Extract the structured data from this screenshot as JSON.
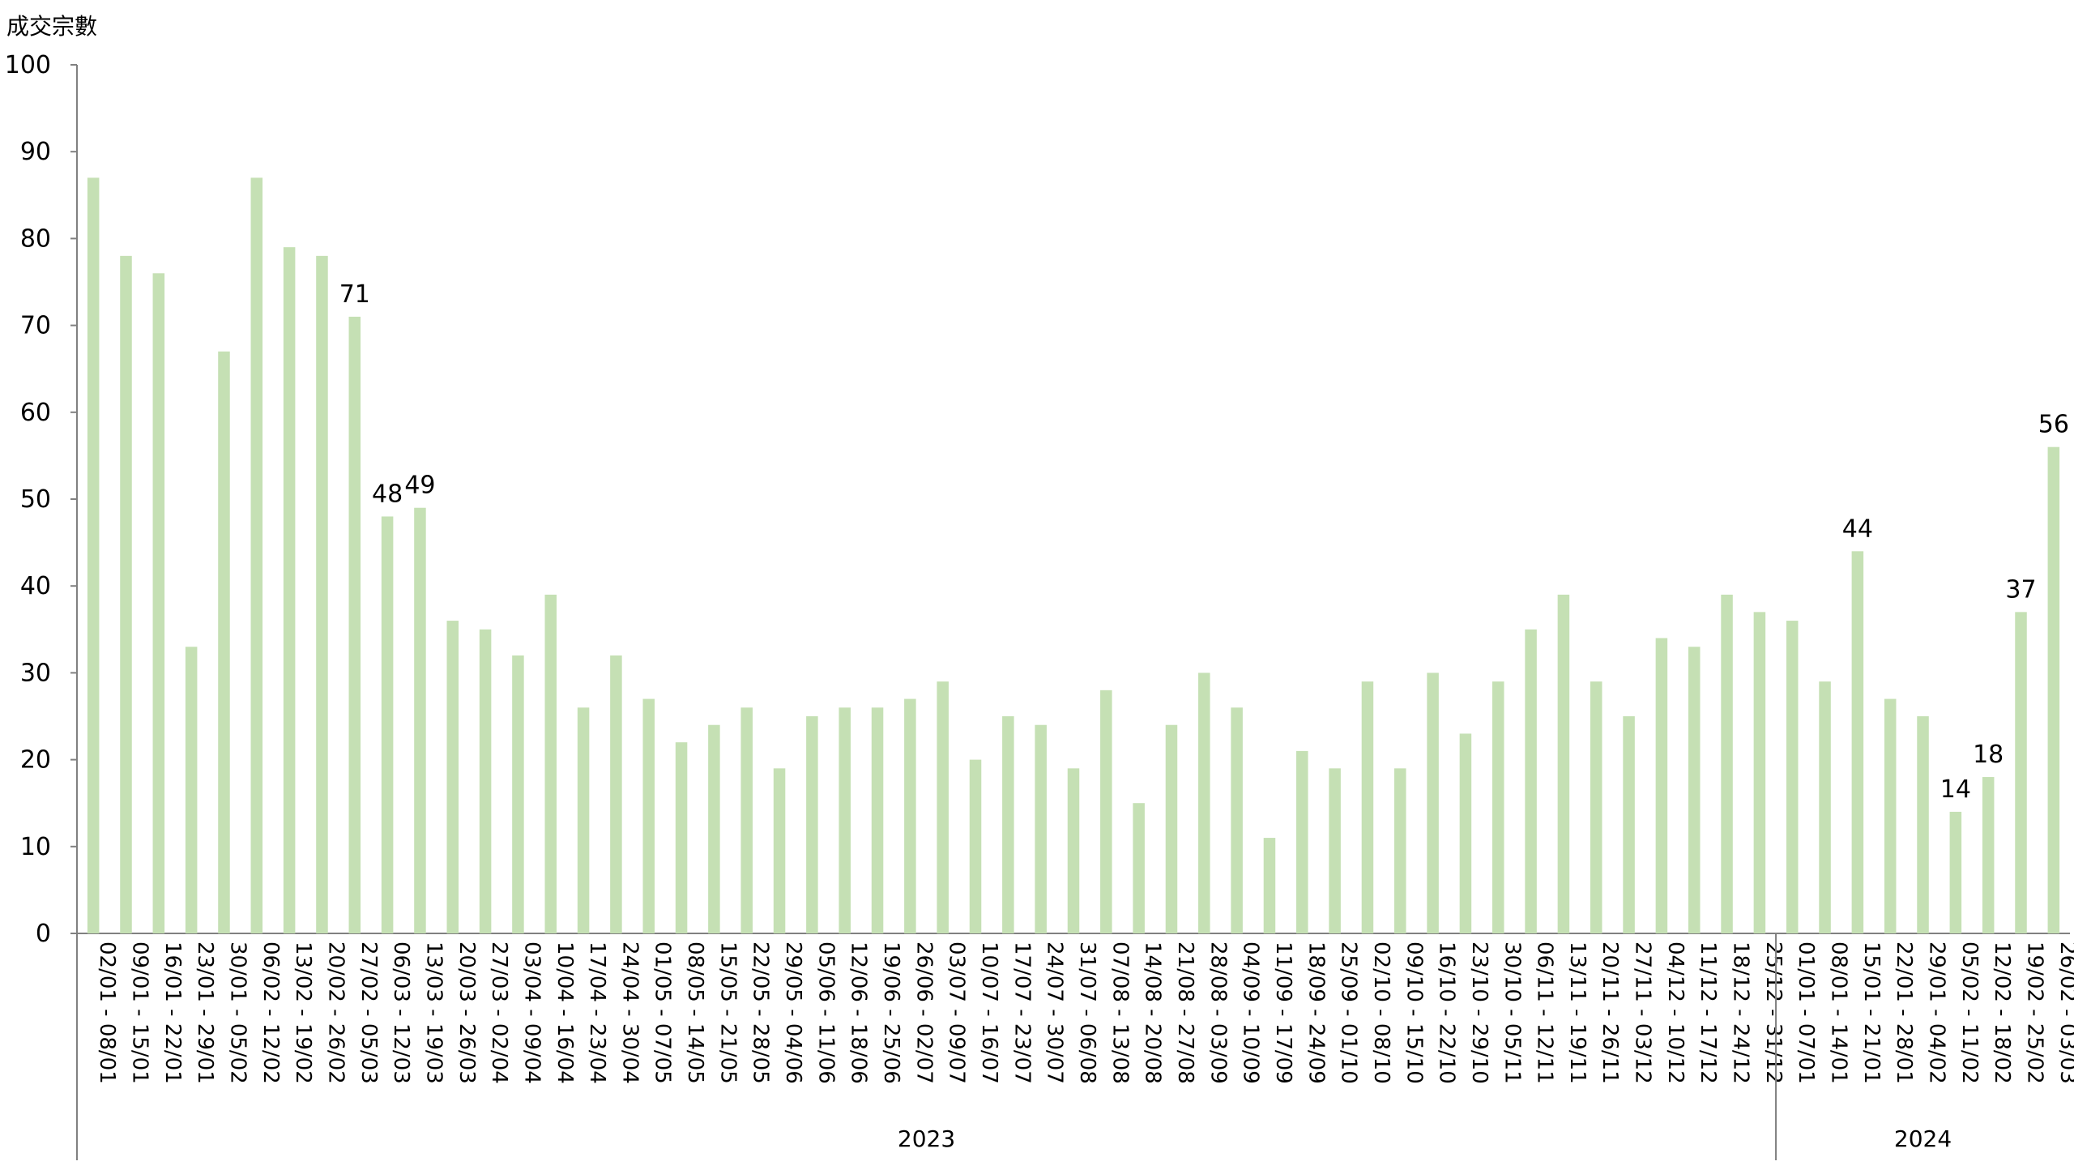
{
  "chart_data": {
    "type": "bar",
    "ylabel": "成交宗數",
    "ylim": [
      0,
      100
    ],
    "yticks": [
      0,
      10,
      20,
      30,
      40,
      50,
      60,
      70,
      80,
      90,
      100
    ],
    "grid": false,
    "bar_color": "#c5e0b4",
    "categories": [
      "02/01 - 08/01",
      "09/01 - 15/01",
      "16/01 - 22/01",
      "23/01 - 29/01",
      "30/01 - 05/02",
      "06/02 - 12/02",
      "13/02 - 19/02",
      "20/02 - 26/02",
      "27/02 - 05/03",
      "06/03 - 12/03",
      "13/03 - 19/03",
      "20/03 - 26/03",
      "27/03 - 02/04",
      "03/04 - 09/04",
      "10/04 - 16/04",
      "17/04 - 23/04",
      "24/04 - 30/04",
      "01/05 - 07/05",
      "08/05 - 14/05",
      "15/05 - 21/05",
      "22/05 - 28/05",
      "29/05 - 04/06",
      "05/06 - 11/06",
      "12/06 - 18/06",
      "19/06 - 25/06",
      "26/06 - 02/07",
      "03/07 - 09/07",
      "10/07 - 16/07",
      "17/07 - 23/07",
      "24/07 - 30/07",
      "31/07 - 06/08",
      "07/08 - 13/08",
      "14/08 - 20/08",
      "21/08 - 27/08",
      "28/08 - 03/09",
      "04/09 - 10/09",
      "11/09 - 17/09",
      "18/09 - 24/09",
      "25/09 - 01/10",
      "02/10 - 08/10",
      "09/10 - 15/10",
      "16/10 - 22/10",
      "23/10 - 29/10",
      "30/10 - 05/11",
      "06/11 - 12/11",
      "13/11 - 19/11",
      "20/11 - 26/11",
      "27/11 - 03/12",
      "04/12 - 10/12",
      "11/12 - 17/12",
      "18/12 - 24/12",
      "25/12 - 31/12",
      "01/01 - 07/01",
      "08/01 - 14/01",
      "15/01 - 21/01",
      "22/01 - 28/01",
      "29/01 - 04/02",
      "05/02 - 11/02",
      "12/02 - 18/02",
      "19/02 - 25/02",
      "26/02 - 03/03"
    ],
    "values": [
      87,
      78,
      76,
      33,
      67,
      87,
      79,
      78,
      71,
      48,
      49,
      36,
      35,
      32,
      39,
      26,
      32,
      27,
      22,
      24,
      26,
      19,
      25,
      26,
      26,
      27,
      29,
      20,
      25,
      24,
      19,
      28,
      15,
      24,
      30,
      26,
      11,
      21,
      19,
      29,
      19,
      30,
      23,
      29,
      35,
      39,
      29,
      25,
      34,
      33,
      39,
      37,
      36,
      29,
      44,
      27,
      25,
      14,
      18,
      37,
      56
    ],
    "data_labels": [
      {
        "index": 8,
        "text": "71"
      },
      {
        "index": 9,
        "text": "48"
      },
      {
        "index": 10,
        "text": "49"
      },
      {
        "index": 54,
        "text": "44"
      },
      {
        "index": 57,
        "text": "14"
      },
      {
        "index": 58,
        "text": "18"
      },
      {
        "index": 59,
        "text": "37"
      },
      {
        "index": 60,
        "text": "56"
      }
    ],
    "groups": [
      {
        "label": "2023",
        "start": 0,
        "end": 51
      },
      {
        "label": "2024",
        "start": 52,
        "end": 60
      }
    ]
  }
}
